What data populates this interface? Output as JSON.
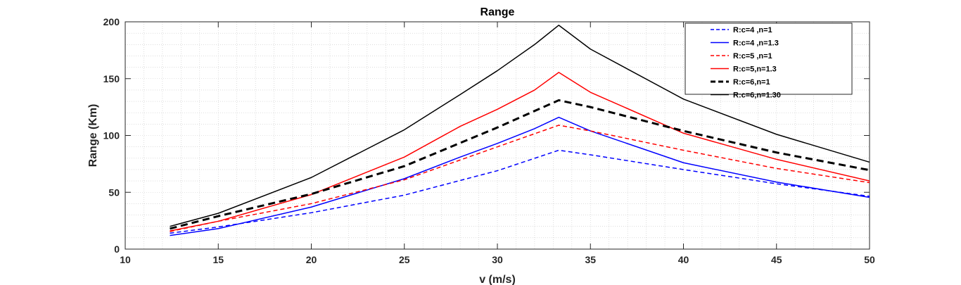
{
  "chart_data": {
    "type": "line",
    "title": "Range",
    "xlabel": "v (m/s)",
    "ylabel": "Range (Km)",
    "xlim": [
      10,
      50
    ],
    "ylim": [
      0,
      200
    ],
    "xticks": [
      10,
      15,
      20,
      25,
      30,
      35,
      40,
      45,
      50
    ],
    "yticks": [
      0,
      50,
      100,
      150,
      200
    ],
    "grid": "minor dotted",
    "legend_position": "top-right",
    "series": [
      {
        "name": "R:c=4 ,n=1",
        "color": "#0000ff",
        "dash": "dashed",
        "width": 1.5,
        "x": [
          12.4,
          15,
          20,
          25,
          30,
          33.3,
          35,
          40,
          45,
          50
        ],
        "y": [
          14,
          19.5,
          32,
          47.5,
          69,
          87,
          83,
          70,
          57.5,
          46.5
        ]
      },
      {
        "name": "R:c=4 ,n=1.3",
        "color": "#0000ff",
        "dash": "solid",
        "width": 1.5,
        "x": [
          12.4,
          15,
          20,
          25,
          28,
          30,
          32,
          33.3,
          35,
          40,
          45,
          50
        ],
        "y": [
          12,
          18,
          37,
          62,
          81,
          93,
          106,
          116,
          104,
          76,
          59,
          45.5
        ]
      },
      {
        "name": "R:c=5 ,n=1",
        "color": "#ff0000",
        "dash": "dashed",
        "width": 1.5,
        "x": [
          12.4,
          15,
          20,
          25,
          30,
          33.3,
          35,
          40,
          45,
          50
        ],
        "y": [
          15.5,
          24.5,
          40,
          61,
          90,
          109,
          104,
          87,
          71,
          58.5
        ]
      },
      {
        "name": "R:c=5,n=1.3",
        "color": "#ff0000",
        "dash": "solid",
        "width": 1.5,
        "x": [
          12.4,
          15,
          20,
          25,
          28,
          30,
          32,
          33.3,
          35,
          40,
          45,
          50
        ],
        "y": [
          16,
          24.5,
          48,
          81,
          108,
          123,
          140,
          155.5,
          138,
          102,
          79,
          60
        ]
      },
      {
        "name": "R:c=6,n=1",
        "color": "#000000",
        "dash": "thick-dashed",
        "width": 3,
        "x": [
          12.4,
          15,
          20,
          25,
          30,
          33.3,
          35,
          40,
          45,
          50
        ],
        "y": [
          18,
          29,
          48.5,
          73,
          107,
          131,
          125,
          104,
          85,
          69.5
        ]
      },
      {
        "name": "R:c=6,n=1.30",
        "color": "#000000",
        "dash": "solid",
        "width": 1.5,
        "x": [
          12.4,
          15,
          20,
          25,
          28,
          30,
          32,
          33.3,
          35,
          40,
          45,
          50
        ],
        "y": [
          20,
          31.5,
          63,
          105,
          136,
          157,
          180,
          197,
          176,
          132,
          101,
          76.5
        ]
      }
    ]
  }
}
